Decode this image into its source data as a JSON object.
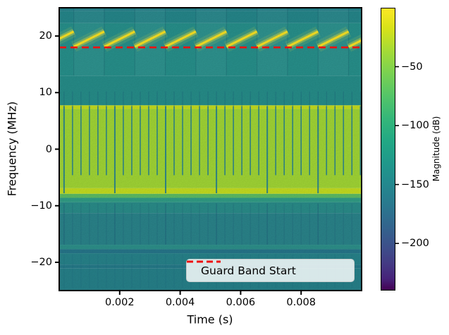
{
  "chart_data": {
    "type": "heatmap",
    "subtype": "spectrogram",
    "title": "",
    "xlabel": "Time (s)",
    "ylabel": "Frequency (MHz)",
    "xlim": [
      0,
      0.01
    ],
    "ylim": [
      -25,
      25
    ],
    "grid": false,
    "x_ticks": {
      "values": [
        0.002,
        0.004,
        0.006,
        0.008
      ],
      "labels": [
        "0.002",
        "0.004",
        "0.006",
        "0.008"
      ]
    },
    "y_ticks": {
      "values": [
        20,
        10,
        0,
        -10,
        -20
      ],
      "labels": [
        "20",
        "10",
        "0",
        "−10",
        "−20"
      ]
    },
    "colorbar": {
      "label": "Magnitude (dB)",
      "range_db": [
        0,
        -240
      ],
      "ticks": {
        "values": [
          -50,
          -100,
          -150,
          -200
        ],
        "labels": [
          "−50",
          "−100",
          "−150",
          "−200"
        ]
      },
      "colormap": "viridis",
      "stops": [
        {
          "pos": "0%",
          "color": "#fde725"
        },
        {
          "pos": "7%",
          "color": "#d8e219"
        },
        {
          "pos": "15%",
          "color": "#a5db36"
        },
        {
          "pos": "23%",
          "color": "#7ad151"
        },
        {
          "pos": "31%",
          "color": "#54c568"
        },
        {
          "pos": "39%",
          "color": "#35b779"
        },
        {
          "pos": "47%",
          "color": "#22a884"
        },
        {
          "pos": "55%",
          "color": "#1f988b"
        },
        {
          "pos": "62%",
          "color": "#23898e"
        },
        {
          "pos": "70%",
          "color": "#2a788e"
        },
        {
          "pos": "78%",
          "color": "#33638d"
        },
        {
          "pos": "85%",
          "color": "#3d4e8a"
        },
        {
          "pos": "91%",
          "color": "#443983"
        },
        {
          "pos": "96%",
          "color": "#46237a"
        },
        {
          "pos": "100%",
          "color": "#440154"
        }
      ]
    },
    "legend": {
      "location": "lower right",
      "entries": [
        {
          "label": "Guard Band Start",
          "color": "#ee1111",
          "linestyle": "dashed"
        }
      ]
    },
    "guard_band_start_mhz": 18,
    "bands": [
      {
        "f": [
          25,
          24.4
        ],
        "color": "#22838c"
      },
      {
        "f": [
          24.4,
          22.3
        ],
        "color": "#26898d"
      },
      {
        "f": [
          22.3,
          13
        ],
        "color": "#28938e"
      },
      {
        "f": [
          13,
          7.75
        ],
        "color": "#27908c"
      },
      {
        "f": [
          7.75,
          7.1
        ],
        "color": "#c8e120"
      },
      {
        "f": [
          7.1,
          -6.9
        ],
        "color": "#a4da36"
      },
      {
        "f": [
          -6.9,
          -7.9
        ],
        "color": "#c8e120"
      },
      {
        "f": [
          -7.9,
          -8.6
        ],
        "color": "#5fc066"
      },
      {
        "f": [
          -8.6,
          -9.4
        ],
        "color": "#32a089"
      },
      {
        "f": [
          -9.4,
          -11.3
        ],
        "color": "#2b8f8c"
      },
      {
        "f": [
          -11.3,
          -16.9
        ],
        "color": "#2b868d"
      },
      {
        "f": [
          -16.9,
          -17.7
        ],
        "color": "#2e938d"
      },
      {
        "f": [
          -17.7,
          -18.4
        ],
        "color": "#27788d"
      },
      {
        "f": [
          -18.4,
          -20.4
        ],
        "color": "#28858d"
      },
      {
        "f": [
          -20.4,
          -21.1
        ],
        "color": "#267d8c"
      },
      {
        "f": [
          -21.1,
          -25
        ],
        "color": "#27838c"
      }
    ],
    "chirps": {
      "first_reset_s": 0.00048,
      "period_s": 0.00101,
      "f_start_mhz": 18.1,
      "f_end_mhz": 20.8,
      "color": "#fde725"
    },
    "symbol_lines": {
      "first_s": 0.00016,
      "spacing_s": 0.00028,
      "long_every": 6,
      "color": "#1f7d9c",
      "stub_top_mhz": 10.2,
      "f_top_mhz": 7.6,
      "f_short_bottom_mhz": -4.6,
      "f_long_bottom_mhz": -7.8,
      "sub_top_mhz": -9.6,
      "sub_bottom_mhz": -16.9
    }
  },
  "colors": {
    "background": "#ffffff",
    "plot_border": "#000000",
    "guard_line": "#ee1111",
    "tick_color": "#000000",
    "legend_bg": "#f0f6f4",
    "legend_border": "#c6cdcc"
  }
}
